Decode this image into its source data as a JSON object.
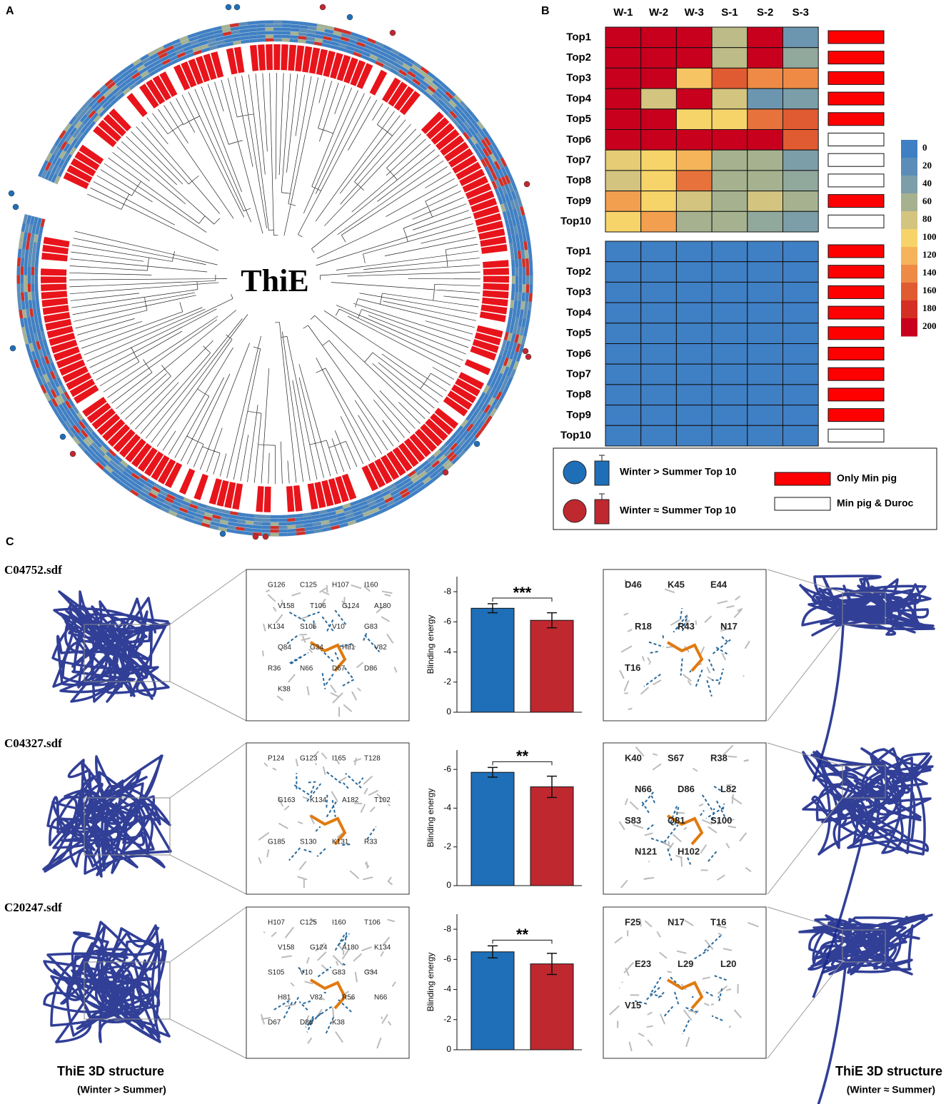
{
  "panels": {
    "a": "A",
    "b": "B",
    "c": "C"
  },
  "tree_label": "ThiE",
  "chart_data": [
    {
      "type": "heatmap",
      "columns": [
        "W-1",
        "W-2",
        "W-3",
        "S-1",
        "S-2",
        "S-3"
      ],
      "rows": [
        "Top1",
        "Top2",
        "Top3",
        "Top4",
        "Top5",
        "Top6",
        "Top7",
        "Top8",
        "Top9",
        "Top10"
      ],
      "values": [
        [
          200,
          200,
          200,
          70,
          200,
          30
        ],
        [
          200,
          200,
          200,
          70,
          200,
          50
        ],
        [
          200,
          200,
          110,
          160,
          140,
          140
        ],
        [
          200,
          80,
          200,
          80,
          30,
          40
        ],
        [
          200,
          200,
          100,
          100,
          150,
          160
        ],
        [
          200,
          200,
          200,
          200,
          200,
          160
        ],
        [
          90,
          100,
          120,
          60,
          60,
          40
        ],
        [
          80,
          100,
          150,
          60,
          60,
          50
        ],
        [
          130,
          100,
          80,
          60,
          80,
          60
        ],
        [
          100,
          130,
          60,
          60,
          50,
          40
        ]
      ],
      "only_min_pig": [
        true,
        true,
        true,
        true,
        true,
        false,
        false,
        false,
        true,
        false
      ],
      "colorbar": {
        "ticks": [
          0,
          20,
          40,
          60,
          80,
          100,
          120,
          140,
          160,
          180,
          200
        ],
        "colors": [
          "#3f7fc4",
          "#5b8db8",
          "#7c9ea8",
          "#a6b28f",
          "#d3c47f",
          "#f7d46a",
          "#f5b45a",
          "#ee8a45",
          "#e05a32",
          "#d42f24",
          "#c8001e"
        ]
      }
    },
    {
      "type": "heatmap",
      "rows": [
        "Top1",
        "Top2",
        "Top3",
        "Top4",
        "Top5",
        "Top6",
        "Top7",
        "Top8",
        "Top9",
        "Top10"
      ],
      "values": [
        [
          0,
          0,
          0,
          0,
          0,
          0
        ],
        [
          0,
          0,
          0,
          0,
          0,
          0
        ],
        [
          0,
          0,
          0,
          0,
          0,
          0
        ],
        [
          0,
          0,
          0,
          0,
          0,
          0
        ],
        [
          0,
          0,
          0,
          0,
          0,
          0
        ],
        [
          0,
          0,
          0,
          0,
          0,
          0
        ],
        [
          0,
          0,
          0,
          0,
          0,
          0
        ],
        [
          0,
          0,
          0,
          0,
          0,
          0
        ],
        [
          0,
          0,
          0,
          0,
          0,
          0
        ],
        [
          0,
          0,
          0,
          0,
          0,
          0
        ]
      ],
      "only_min_pig": [
        true,
        true,
        true,
        true,
        true,
        true,
        true,
        true,
        true,
        false
      ]
    },
    {
      "type": "bar",
      "title": "C04752.sdf",
      "ylabel": "Blinding energy",
      "annotation": "***",
      "values": [
        -6.9,
        -6.1
      ],
      "errors": [
        0.3,
        0.5
      ],
      "colors": [
        "#1f6fb8",
        "#c0282f"
      ],
      "ylim": [
        0,
        -9
      ],
      "yticks": [
        0,
        -2,
        -4,
        -6,
        -8
      ]
    },
    {
      "type": "bar",
      "title": "C04327.sdf",
      "ylabel": "Blinding energy",
      "annotation": "**",
      "values": [
        -5.85,
        -5.1
      ],
      "errors": [
        0.25,
        0.55
      ],
      "colors": [
        "#1f6fb8",
        "#c0282f"
      ],
      "ylim": [
        0,
        -7
      ],
      "yticks": [
        0,
        -2,
        -4,
        -6
      ]
    },
    {
      "type": "bar",
      "title": "C20247.sdf",
      "ylabel": "Blinding energy",
      "annotation": "**",
      "values": [
        -6.5,
        -5.7
      ],
      "errors": [
        0.4,
        0.7
      ],
      "colors": [
        "#1f6fb8",
        "#c0282f"
      ],
      "ylim": [
        0,
        -9
      ],
      "yticks": [
        0,
        -2,
        -4,
        -6,
        -8
      ]
    }
  ],
  "legend": {
    "winter_gt": "Winter > Summer Top 10",
    "winter_eq": "Winter ≈ Summer Top 10",
    "only_min": "Only Min pig",
    "both": "Min pig & Duroc"
  },
  "residues": [
    {
      "left": [
        "G126",
        "C125",
        "H107",
        "I160",
        "V158",
        "T106",
        "G124",
        "A180",
        "K134",
        "S105",
        "V10",
        "G83",
        "Q84",
        "G34",
        "H81",
        "V82",
        "R36",
        "N66",
        "D67",
        "D86",
        "K38"
      ],
      "right": [
        "D46",
        "K45",
        "E44",
        "R18",
        "R43",
        "N17",
        "T16"
      ]
    },
    {
      "left": [
        "P124",
        "G123",
        "I165",
        "T128",
        "G163",
        "K134",
        "A182",
        "T102",
        "G185",
        "S130",
        "K131",
        "R33"
      ],
      "right": [
        "K40",
        "S67",
        "R38",
        "N66",
        "D86",
        "L82",
        "S83",
        "Q81",
        "S100",
        "N121",
        "H102"
      ]
    },
    {
      "left": [
        "H107",
        "C125",
        "I160",
        "T106",
        "V158",
        "G124",
        "A180",
        "K134",
        "S105",
        "V10",
        "G83",
        "G34",
        "H81",
        "V82",
        "R56",
        "N66",
        "D67",
        "D86",
        "K38"
      ],
      "right": [
        "F25",
        "N17",
        "T16",
        "E23",
        "L29",
        "L20",
        "V15"
      ]
    }
  ],
  "captions": {
    "left": "ThiE 3D structure",
    "left_sub": "(Winter > Summer)",
    "right": "ThiE 3D structure",
    "right_sub": "(Winter ≈ Summer)"
  }
}
